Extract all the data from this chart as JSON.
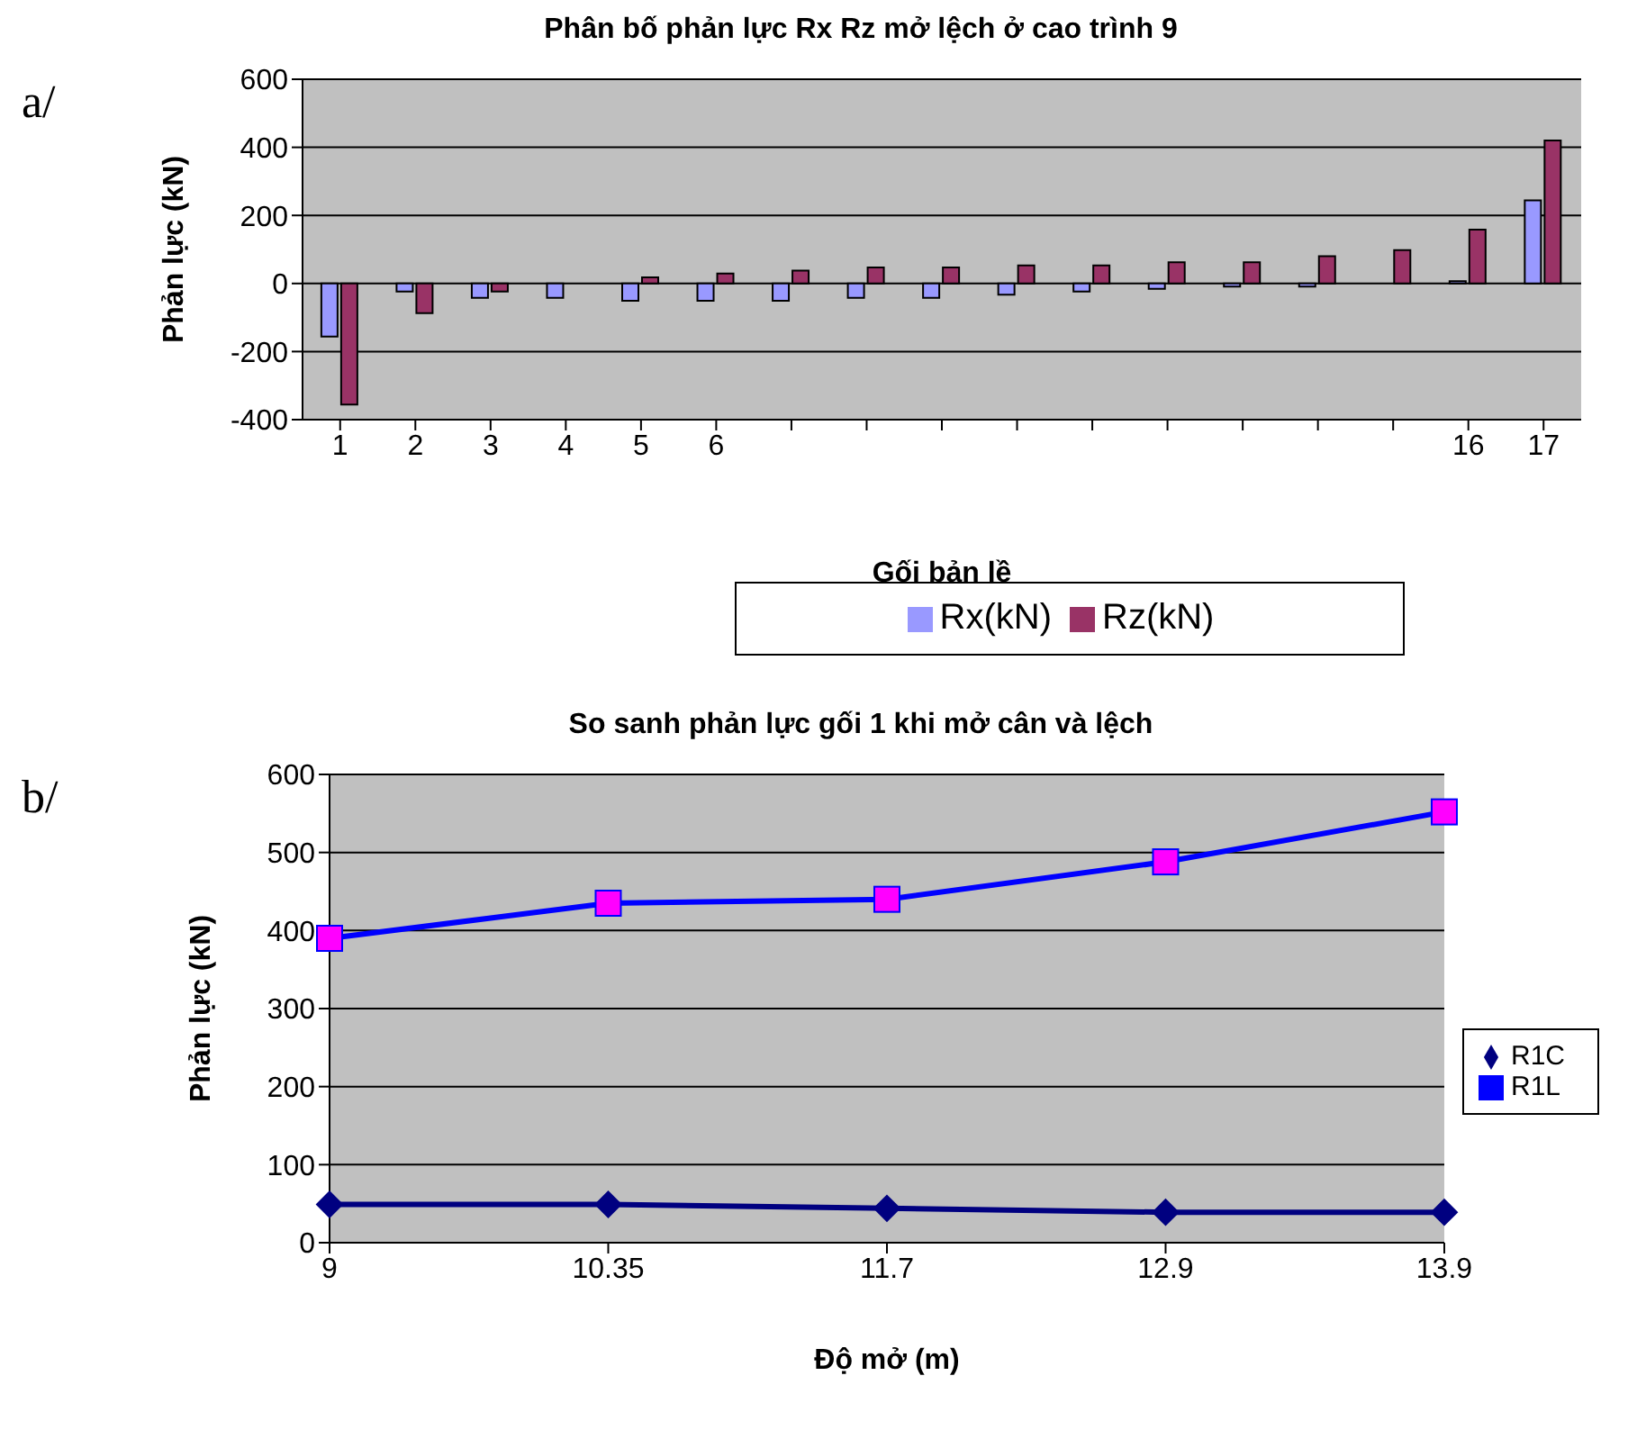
{
  "chart_data": [
    {
      "type": "bar",
      "title": "Phân bố phản lực Rx Rz mở lệch ở cao trình 9",
      "xlabel": "Gối bản lề",
      "ylabel": "Phản lực (kN)",
      "annotations": [
        "a/"
      ],
      "categories": [
        "1",
        "2",
        "3",
        "4",
        "5",
        "6",
        null,
        null,
        null,
        null,
        null,
        null,
        null,
        null,
        null,
        "16",
        "17"
      ],
      "series": [
        {
          "name": "Rx(kN)",
          "color": "#9999ff",
          "values": [
            -156,
            -24,
            -42,
            -42,
            -51,
            -51,
            -51,
            -42,
            -42,
            -33,
            -24,
            -16,
            -9,
            -9,
            0,
            7,
            244
          ]
        },
        {
          "name": "Rz(kN)",
          "color": "#993366",
          "values": [
            -356,
            -87,
            -24,
            0,
            18,
            29,
            38,
            47,
            47,
            53,
            53,
            62,
            62,
            80,
            98,
            158,
            420
          ]
        }
      ],
      "ylim": [
        -400,
        600
      ],
      "yticks": [
        -400,
        -200,
        0,
        200,
        400,
        600
      ],
      "grid": "y",
      "legend": "bottom"
    },
    {
      "type": "line",
      "title": "So sanh phản lực gối 1 khi mở cân và lệch",
      "xlabel": "Độ mở (m)",
      "ylabel": "Phản lực (kN)",
      "annotations": [
        "b/"
      ],
      "categories": [
        "9",
        "10.35",
        "11.7",
        "12.9",
        "13.9"
      ],
      "series": [
        {
          "name": "R1C",
          "color": "#000080",
          "marker": "diamond",
          "values": [
            49,
            49,
            44,
            39,
            39
          ]
        },
        {
          "name": "R1L",
          "color": "#0000ff",
          "colors": [
            "#ff00ff",
            "#ff00ff",
            "#ff00ff",
            "#ff00ff",
            "#ff00ff"
          ],
          "marker": "square",
          "values": [
            390,
            435,
            440,
            488,
            552
          ]
        }
      ],
      "ylim": [
        0,
        600
      ],
      "yticks": [
        0,
        100,
        200,
        300,
        400,
        500,
        600
      ],
      "grid": "y",
      "legend": "right"
    }
  ]
}
